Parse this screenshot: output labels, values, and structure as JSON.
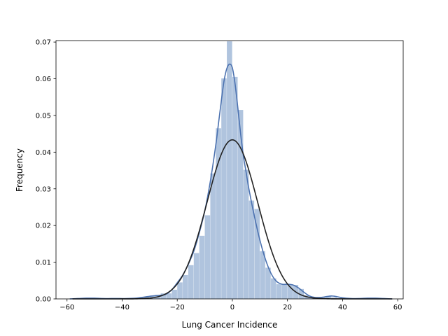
{
  "chart_data": {
    "type": "bar",
    "title": "",
    "xlabel": "Lung Cancer Incidence",
    "ylabel": "Frequency",
    "xlim": [
      -64,
      62
    ],
    "ylim": [
      0,
      0.0704
    ],
    "grid": false,
    "legend": "none",
    "xticks": [
      -60,
      -40,
      -20,
      0,
      20,
      40,
      60
    ],
    "xtick_labels": [
      "−60",
      "−40",
      "−20",
      "0",
      "20",
      "40",
      "60"
    ],
    "yticks": [
      0.0,
      0.01,
      0.02,
      0.03,
      0.04,
      0.05,
      0.06,
      0.07
    ],
    "ytick_labels": [
      "0.00",
      "0.01",
      "0.02",
      "0.03",
      "0.04",
      "0.05",
      "0.06",
      "0.07"
    ],
    "colors": {
      "histogram": "#b0c4de",
      "kde": "#4c72b0",
      "normal_fit": "#222222",
      "axes": "#000000"
    },
    "histogram": {
      "bin_width": 2,
      "bins": [
        {
          "x0": -58,
          "x1": -56,
          "y": 0.0001
        },
        {
          "x0": -56,
          "x1": -54,
          "y": 0.0001
        },
        {
          "x0": -54,
          "x1": -52,
          "y": 0.0002
        },
        {
          "x0": -52,
          "x1": -50,
          "y": 0.0002
        },
        {
          "x0": -50,
          "x1": -48,
          "y": 0.0001
        },
        {
          "x0": -48,
          "x1": -46,
          "y": 0.0
        },
        {
          "x0": -46,
          "x1": -44,
          "y": 0.0001
        },
        {
          "x0": -44,
          "x1": -42,
          "y": 0.0002
        },
        {
          "x0": -42,
          "x1": -40,
          "y": 0.0001
        },
        {
          "x0": -40,
          "x1": -38,
          "y": 0.0
        },
        {
          "x0": -38,
          "x1": -36,
          "y": 0.0001
        },
        {
          "x0": -36,
          "x1": -34,
          "y": 0.0002
        },
        {
          "x0": -34,
          "x1": -32,
          "y": 0.0004
        },
        {
          "x0": -32,
          "x1": -30,
          "y": 0.0006
        },
        {
          "x0": -30,
          "x1": -28,
          "y": 0.0009
        },
        {
          "x0": -28,
          "x1": -26,
          "y": 0.0011
        },
        {
          "x0": -26,
          "x1": -24,
          "y": 0.0015
        },
        {
          "x0": -24,
          "x1": -22,
          "y": 0.0015
        },
        {
          "x0": -22,
          "x1": -20,
          "y": 0.0025
        },
        {
          "x0": -20,
          "x1": -18,
          "y": 0.0045
        },
        {
          "x0": -18,
          "x1": -16,
          "y": 0.0065
        },
        {
          "x0": -16,
          "x1": -14,
          "y": 0.0092
        },
        {
          "x0": -14,
          "x1": -12,
          "y": 0.0125
        },
        {
          "x0": -12,
          "x1": -10,
          "y": 0.0172
        },
        {
          "x0": -10,
          "x1": -8,
          "y": 0.0228
        },
        {
          "x0": -8,
          "x1": -6,
          "y": 0.0342
        },
        {
          "x0": -6,
          "x1": -4,
          "y": 0.0465
        },
        {
          "x0": -4,
          "x1": -2,
          "y": 0.0601
        },
        {
          "x0": -2,
          "x1": 0,
          "y": 0.0702
        },
        {
          "x0": 0,
          "x1": 2,
          "y": 0.0605
        },
        {
          "x0": 2,
          "x1": 4,
          "y": 0.0515
        },
        {
          "x0": 4,
          "x1": 6,
          "y": 0.0352
        },
        {
          "x0": 6,
          "x1": 8,
          "y": 0.0268
        },
        {
          "x0": 8,
          "x1": 10,
          "y": 0.0245
        },
        {
          "x0": 10,
          "x1": 12,
          "y": 0.013
        },
        {
          "x0": 12,
          "x1": 14,
          "y": 0.0085
        },
        {
          "x0": 14,
          "x1": 16,
          "y": 0.0056
        },
        {
          "x0": 16,
          "x1": 18,
          "y": 0.004
        },
        {
          "x0": 18,
          "x1": 20,
          "y": 0.004
        },
        {
          "x0": 20,
          "x1": 22,
          "y": 0.004
        },
        {
          "x0": 22,
          "x1": 24,
          "y": 0.0038
        },
        {
          "x0": 24,
          "x1": 26,
          "y": 0.0027
        },
        {
          "x0": 26,
          "x1": 28,
          "y": 0.001
        },
        {
          "x0": 28,
          "x1": 30,
          "y": 0.0004
        },
        {
          "x0": 30,
          "x1": 32,
          "y": 0.0002
        },
        {
          "x0": 32,
          "x1": 34,
          "y": 0.0004
        },
        {
          "x0": 34,
          "x1": 36,
          "y": 0.0008
        },
        {
          "x0": 36,
          "x1": 38,
          "y": 0.0004
        },
        {
          "x0": 38,
          "x1": 40,
          "y": 0.0002
        },
        {
          "x0": 40,
          "x1": 42,
          "y": 0.0001
        },
        {
          "x0": 42,
          "x1": 44,
          "y": 0.0002
        },
        {
          "x0": 44,
          "x1": 46,
          "y": 0.0001
        },
        {
          "x0": 46,
          "x1": 48,
          "y": 0.0001
        },
        {
          "x0": 48,
          "x1": 50,
          "y": 0.0002
        },
        {
          "x0": 50,
          "x1": 52,
          "y": 0.0003
        },
        {
          "x0": 52,
          "x1": 54,
          "y": 0.0001
        }
      ]
    },
    "kde": {
      "x": [
        -59,
        -56,
        -53,
        -50,
        -47,
        -44,
        -41,
        -38,
        -35,
        -32,
        -29,
        -26,
        -24,
        -22,
        -20,
        -18,
        -16,
        -14,
        -12,
        -10,
        -8,
        -6,
        -5,
        -4,
        -3,
        -2,
        -1,
        0,
        1,
        2,
        3,
        4,
        5,
        6,
        8,
        10,
        12,
        14,
        16,
        18,
        20,
        22,
        24,
        26,
        28,
        30,
        32,
        34,
        36,
        38,
        40,
        43,
        46,
        49,
        52,
        55,
        58
      ],
      "y": [
        0.0,
        0.0001,
        0.0002,
        0.0002,
        0.0001,
        0.0001,
        0.0001,
        0.0001,
        0.0002,
        0.0005,
        0.0008,
        0.001,
        0.0013,
        0.0025,
        0.0044,
        0.0065,
        0.0094,
        0.013,
        0.018,
        0.024,
        0.032,
        0.042,
        0.048,
        0.054,
        0.0595,
        0.0628,
        0.064,
        0.063,
        0.0585,
        0.052,
        0.045,
        0.039,
        0.0345,
        0.03,
        0.0225,
        0.016,
        0.0108,
        0.007,
        0.0048,
        0.004,
        0.004,
        0.0038,
        0.003,
        0.0018,
        0.0008,
        0.0004,
        0.0004,
        0.0006,
        0.0008,
        0.0006,
        0.0003,
        0.0001,
        0.0001,
        0.0002,
        0.0002,
        0.0001,
        0.0
      ]
    },
    "normal_fit": {
      "mean": 0,
      "std": 9.2,
      "x_range": [
        -58,
        58
      ]
    }
  }
}
